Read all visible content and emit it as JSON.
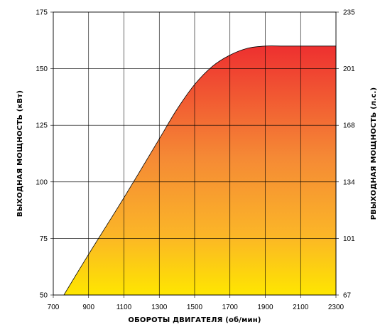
{
  "chart_data": {
    "type": "area",
    "xlabel": "ОБОРОТЫ ДВИГАТЕЛЯ (об/мин)",
    "ylabel": "ВЫХОДНАЯ МОЩНОСТЬ (кВт)",
    "y2label": "РВЫХОДНАЯ МОЩНОСТЬ (л.с.)",
    "xlim": [
      700,
      2300
    ],
    "ylim": [
      50,
      175
    ],
    "xticks": [
      "700",
      "900",
      "1100",
      "1300",
      "1500",
      "1700",
      "1900",
      "2100",
      "2300"
    ],
    "yticks": [
      "50",
      "75",
      "100",
      "125",
      "150",
      "175"
    ],
    "y2ticks": [
      "67",
      "101",
      "134",
      "168",
      "201",
      "235"
    ],
    "grid": true,
    "series": [
      {
        "x": [
          760,
          900,
          1100,
          1300,
          1400,
          1500,
          1600,
          1700,
          1800,
          1900,
          2000,
          2100,
          2200,
          2300
        ],
        "y": [
          50,
          68,
          93,
          119,
          132,
          143,
          151,
          156,
          159,
          160,
          160,
          160,
          160,
          160
        ]
      }
    ],
    "fill_colors": {
      "top": "#ee3030",
      "bottom": "#fee600"
    }
  }
}
